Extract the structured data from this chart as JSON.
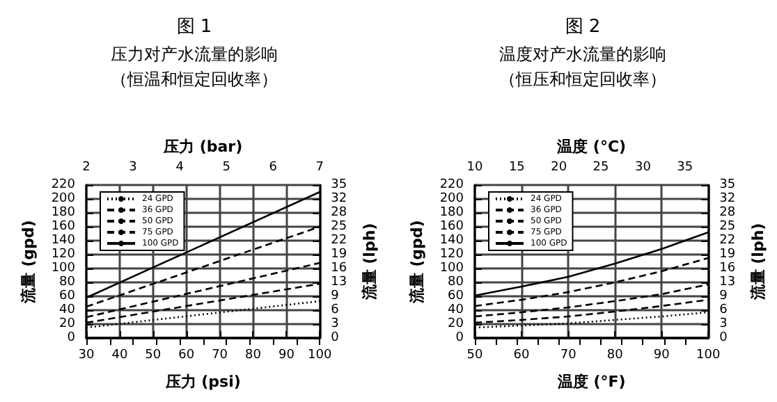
{
  "chart_data": [
    {
      "type": "line",
      "title": "图 1",
      "subtitle": "压力对产水流量的影响（恒温和恒定回收率）",
      "xlabel": "压力 (psi)",
      "x2label": "压力 (bar)",
      "ylabel": "流量 (gpd)",
      "y2label": "流量 (lph)",
      "x": [
        30,
        100
      ],
      "series": [
        {
          "name": "24 GPD",
          "color": "#000000",
          "line_style": "dotted",
          "values": [
            15,
            53
          ]
        },
        {
          "name": "36 GPD",
          "color": "#000000",
          "line_style": "dashed",
          "values": [
            22,
            78
          ]
        },
        {
          "name": "50 GPD",
          "color": "#000000",
          "line_style": "dashed",
          "values": [
            30,
            108
          ]
        },
        {
          "name": "75 GPD",
          "color": "#000000",
          "line_style": "dashed",
          "values": [
            45,
            160
          ]
        },
        {
          "name": "100 GPD",
          "color": "#000000",
          "line_style": "solid",
          "values": [
            58,
            210
          ]
        }
      ],
      "xlim": [
        30,
        100
      ],
      "xticks": [
        30,
        40,
        50,
        60,
        70,
        80,
        90,
        100
      ],
      "x2lim": [
        2,
        7
      ],
      "x2ticks": [
        2,
        {
          "value": 2.5,
          "label": null
        },
        3,
        {
          "value": 3.5,
          "label": null
        },
        4,
        {
          "value": 4.5,
          "label": null
        },
        5,
        {
          "value": 5.5,
          "label": null
        },
        6,
        {
          "value": 6.5,
          "label": null
        },
        7
      ],
      "ylim": [
        0,
        220
      ],
      "yticks": [
        0,
        20,
        40,
        60,
        80,
        100,
        120,
        140,
        160,
        180,
        200,
        220
      ],
      "y2lim": [
        0,
        34.7
      ],
      "y2ticks": [
        0,
        {
          "value": 3.15,
          "label": "3"
        },
        {
          "value": 6.3,
          "label": "6"
        },
        {
          "value": 9.5,
          "label": "9"
        },
        {
          "value": 12.6,
          "label": "13"
        },
        {
          "value": 15.8,
          "label": "16"
        },
        {
          "value": 18.9,
          "label": "19"
        },
        {
          "value": 22.1,
          "label": "22"
        },
        {
          "value": 25.2,
          "label": "25"
        },
        {
          "value": 28.4,
          "label": "28"
        },
        {
          "value": 31.5,
          "label": "32"
        },
        {
          "value": 34.7,
          "label": "35"
        }
      ],
      "grid": true,
      "legend": "top left",
      "marker": "none"
    },
    {
      "type": "line",
      "title": "图 2",
      "subtitle": "温度对产水流量的影响（恒压和恒定回收率）",
      "xlabel": "温度 (°F)",
      "x2label": "温度 (°C)",
      "ylabel": "流量 (gpd)",
      "y2label": "流量 (lph)",
      "x": [
        50,
        60,
        70,
        80,
        90,
        100
      ],
      "series": [
        {
          "name": "24 GPD",
          "color": "#000000",
          "line_style": "dotted",
          "values": [
            15,
            18,
            21,
            26,
            31,
            37
          ]
        },
        {
          "name": "36 GPD",
          "color": "#000000",
          "line_style": "dashed",
          "values": [
            22,
            26,
            31,
            38,
            46,
            55
          ]
        },
        {
          "name": "50 GPD",
          "color": "#000000",
          "line_style": "dashed",
          "values": [
            31,
            37,
            44,
            53,
            63,
            77
          ]
        },
        {
          "name": "75 GPD",
          "color": "#000000",
          "line_style": "dashed",
          "values": [
            46,
            55,
            66,
            80,
            96,
            115
          ]
        },
        {
          "name": "100 GPD",
          "color": "#000000",
          "line_style": "solid",
          "values": [
            61,
            74,
            88,
            107,
            128,
            152
          ]
        }
      ],
      "xlim": [
        50,
        100
      ],
      "xticks": [
        50,
        60,
        70,
        80,
        90,
        100
      ],
      "x2lim": [
        10,
        37.78
      ],
      "x2ticks": [
        10,
        {
          "value": 12.5,
          "label": null
        },
        15,
        {
          "value": 17.5,
          "label": null
        },
        20,
        {
          "value": 22.5,
          "label": null
        },
        25,
        {
          "value": 27.5,
          "label": null
        },
        30,
        {
          "value": 32.5,
          "label": null
        },
        35
      ],
      "ylim": [
        0,
        220
      ],
      "yticks": [
        0,
        20,
        40,
        60,
        80,
        100,
        120,
        140,
        160,
        180,
        200,
        220
      ],
      "y2lim": [
        0,
        34.7
      ],
      "y2ticks": [
        0,
        {
          "value": 3.15,
          "label": "3"
        },
        {
          "value": 6.3,
          "label": "6"
        },
        {
          "value": 9.5,
          "label": "9"
        },
        {
          "value": 12.6,
          "label": "13"
        },
        {
          "value": 15.8,
          "label": "16"
        },
        {
          "value": 18.9,
          "label": "19"
        },
        {
          "value": 22.1,
          "label": "22"
        },
        {
          "value": 25.2,
          "label": "25"
        },
        {
          "value": 28.4,
          "label": "28"
        },
        {
          "value": 31.5,
          "label": "32"
        },
        {
          "value": 34.7,
          "label": "35"
        }
      ],
      "grid": true,
      "legend": "top left",
      "marker": "none"
    }
  ]
}
